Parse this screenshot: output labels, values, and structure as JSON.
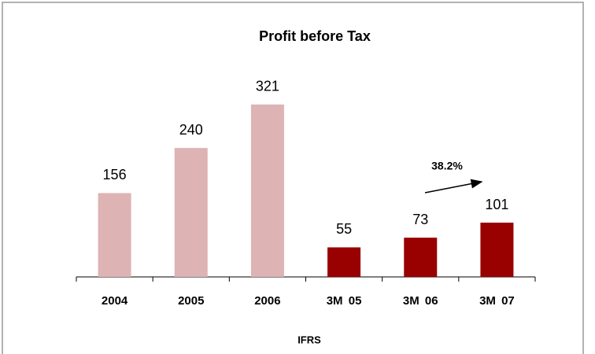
{
  "chart_data": {
    "type": "bar",
    "title": "Profit before Tax",
    "categories": [
      "2004",
      "2005",
      "2006",
      "3M 05",
      "3M 06",
      "3M 07"
    ],
    "values": [
      156,
      240,
      321,
      55,
      73,
      101
    ],
    "colors": [
      "#deb3b3",
      "#deb3b3",
      "#deb3b3",
      "#990000",
      "#990000",
      "#990000"
    ],
    "ylim": [
      0,
      350
    ],
    "xlabel": "IFRS",
    "annotation": "38.2%"
  }
}
